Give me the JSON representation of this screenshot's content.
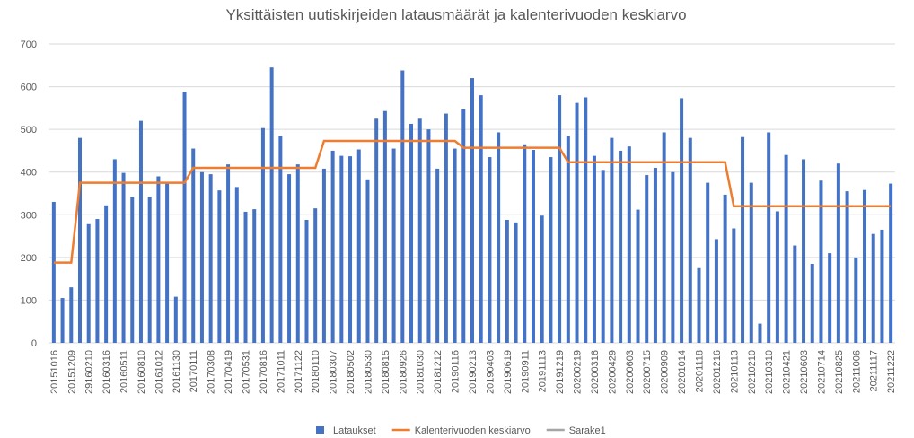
{
  "chart_data": {
    "type": "bar_line",
    "title": "Yksittäisten uutiskirjeiden latausmäärät ja kalenterivuoden keskiarvo",
    "categories": [
      "20151016",
      null,
      "20151209",
      null,
      "29160210",
      null,
      "20160316",
      null,
      "20160511",
      null,
      "20160810",
      null,
      "20161012",
      null,
      "20161130",
      null,
      "20170111",
      null,
      "20170308",
      null,
      "20170419",
      null,
      "20170531",
      null,
      "20170816",
      null,
      "20171011",
      null,
      "20171122",
      null,
      "20180110",
      null,
      "20180307",
      null,
      "20180502",
      null,
      "20180530",
      null,
      "20180815",
      null,
      "20180926",
      null,
      "20181030",
      null,
      "20181212",
      null,
      "20190116",
      null,
      "20190213",
      null,
      "20190403",
      null,
      "20190619",
      null,
      "20190911",
      null,
      "20191113",
      null,
      "20191219",
      null,
      "20200219",
      null,
      "20200316",
      null,
      "20200429",
      null,
      "20200603",
      null,
      "20200715",
      null,
      "20200909",
      null,
      "20201014",
      null,
      "20201118",
      null,
      "20201216",
      null,
      "20210113",
      null,
      "20210210",
      null,
      "20210310",
      null,
      "20210421",
      null,
      "20210603",
      null,
      "20210714",
      null,
      "20210825",
      null,
      "20211006",
      null,
      "20211117",
      null,
      "20211222"
    ],
    "series": [
      {
        "name": "Lataukset",
        "kind": "bar",
        "color": "#4472c4",
        "values": [
          330,
          105,
          130,
          480,
          278,
          290,
          322,
          430,
          398,
          342,
          520,
          342,
          390,
          375,
          108,
          588,
          455,
          400,
          395,
          357,
          418,
          365,
          307,
          313,
          503,
          645,
          485,
          395,
          418,
          288,
          315,
          408,
          450,
          438,
          437,
          453,
          383,
          525,
          543,
          455,
          638,
          513,
          525,
          500,
          408,
          537,
          455,
          547,
          620,
          580,
          435,
          493,
          288,
          282,
          465,
          452,
          298,
          435,
          580,
          485,
          562,
          575,
          438,
          405,
          480,
          450,
          460,
          312,
          393,
          410,
          493,
          400,
          573,
          480,
          175,
          375,
          243,
          347,
          268,
          482,
          375,
          45,
          493,
          308,
          440,
          228,
          430,
          185,
          380,
          210,
          420,
          355,
          200,
          358,
          255,
          265,
          373
        ]
      },
      {
        "name": "Kalenterivuoden keskiarvo",
        "kind": "line",
        "color": "#ed7d31",
        "values": [
          188,
          188,
          188,
          375,
          375,
          375,
          375,
          375,
          375,
          375,
          375,
          375,
          375,
          375,
          375,
          375,
          410,
          410,
          410,
          410,
          410,
          410,
          410,
          410,
          410,
          410,
          410,
          410,
          410,
          410,
          410,
          473,
          473,
          473,
          473,
          473,
          473,
          473,
          473,
          473,
          473,
          473,
          473,
          473,
          473,
          473,
          473,
          457,
          457,
          457,
          457,
          457,
          457,
          457,
          457,
          457,
          457,
          457,
          457,
          423,
          423,
          423,
          423,
          423,
          423,
          423,
          423,
          423,
          423,
          423,
          423,
          423,
          423,
          423,
          423,
          423,
          423,
          423,
          320,
          320,
          320,
          320,
          320,
          320,
          320,
          320,
          320,
          320,
          320,
          320,
          320,
          320,
          320,
          320,
          320,
          320,
          320
        ]
      },
      {
        "name": "Sarake1",
        "kind": "line",
        "color": "#a5a5a5",
        "values": [
          null,
          null,
          null,
          null,
          null,
          null,
          null,
          null,
          null,
          null,
          null,
          null,
          null,
          null,
          null,
          null,
          null,
          null,
          null,
          null,
          null,
          null,
          null,
          null,
          null,
          null,
          null,
          null,
          null,
          null,
          null,
          null,
          null,
          null,
          null,
          null,
          null,
          null,
          null,
          null,
          null,
          null,
          null,
          null,
          null,
          null,
          null,
          null,
          null,
          null,
          null,
          null,
          null,
          null,
          null,
          null,
          null,
          null,
          null,
          null,
          null,
          null,
          null,
          null,
          null,
          null,
          null,
          null,
          null,
          null,
          null,
          null,
          null,
          null,
          null,
          null,
          null,
          null,
          null,
          null,
          null,
          null,
          null,
          null,
          null,
          null,
          null,
          null,
          null,
          null,
          null,
          null,
          null,
          null,
          null,
          null,
          null
        ]
      }
    ],
    "ylim": [
      0,
      700
    ],
    "yticks": [
      0,
      100,
      200,
      300,
      400,
      500,
      600,
      700
    ],
    "grid": true,
    "legend": "bottom"
  }
}
